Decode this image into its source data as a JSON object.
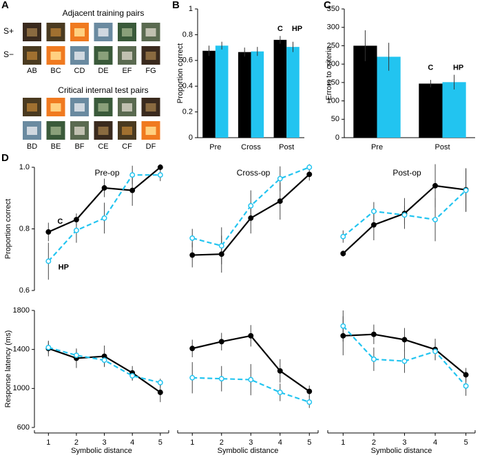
{
  "panel_labels": [
    "A",
    "B",
    "C",
    "D"
  ],
  "panel_a": {
    "training_title": "Adjacent training pairs",
    "row_labels": [
      "S+",
      "S−"
    ],
    "training_pairs": [
      "AB",
      "BC",
      "CD",
      "DE",
      "EF",
      "FG"
    ],
    "test_title": "Critical internal test pairs",
    "test_pairs": [
      "BD",
      "BE",
      "BF",
      "CE",
      "CF",
      "DF"
    ]
  },
  "chart_data": [
    {
      "type": "bar",
      "ylabel": "Proportion correct",
      "categories": [
        "Pre",
        "Cross",
        "Post"
      ],
      "series": [
        {
          "name": "C",
          "color": "#000000",
          "values": [
            0.675,
            0.665,
            0.76
          ],
          "errors": [
            0.04,
            0.035,
            0.03
          ]
        },
        {
          "name": "HP",
          "color": "#22c4f0",
          "values": [
            0.715,
            0.67,
            0.705
          ],
          "errors": [
            0.03,
            0.035,
            0.04
          ]
        }
      ],
      "ylim": [
        0,
        1
      ],
      "yticks": [
        0,
        0.2,
        0.4,
        0.6,
        0.8,
        1
      ]
    },
    {
      "type": "bar",
      "ylabel": "Errors to criteria",
      "categories": [
        "Pre",
        "Post"
      ],
      "series": [
        {
          "name": "C",
          "color": "#000000",
          "values": [
            250,
            147
          ],
          "errors": [
            42,
            10
          ]
        },
        {
          "name": "HP",
          "color": "#22c4f0",
          "values": [
            220,
            151
          ],
          "errors": [
            38,
            20
          ]
        }
      ],
      "ylim": [
        0,
        350
      ],
      "yticks": [
        0,
        50,
        100,
        150,
        200,
        250,
        300,
        350
      ]
    },
    {
      "type": "line",
      "title": "Pre-op",
      "ylabel": "Proportion correct",
      "x": [
        1,
        2,
        3,
        4,
        5
      ],
      "xlim": [
        0.5,
        5.3
      ],
      "series": [
        {
          "name": "C",
          "color": "#000000",
          "dashed": false,
          "marker": "filled",
          "values": [
            0.79,
            0.83,
            0.933,
            0.925,
            1.0
          ],
          "errors": [
            0.03,
            0.02,
            0.03,
            0.05,
            0.01
          ]
        },
        {
          "name": "HP",
          "color": "#22c4f0",
          "dashed": true,
          "marker": "open",
          "values": [
            0.695,
            0.795,
            0.835,
            0.975,
            0.975
          ],
          "errors": [
            0.06,
            0.04,
            0.05,
            0.03,
            0.02
          ]
        }
      ],
      "ylim": [
        0.6,
        1.0
      ],
      "yticks": [
        0.6,
        0.8,
        {
          "value": 1.0,
          "label": "1.0"
        }
      ]
    },
    {
      "type": "line",
      "title": "Cross-op",
      "x": [
        1,
        2,
        3,
        4,
        5
      ],
      "xlim": [
        0.5,
        5.3
      ],
      "series": [
        {
          "color": "#000000",
          "dashed": false,
          "marker": "filled",
          "values": [
            0.715,
            0.718,
            0.835,
            0.89,
            0.977
          ],
          "errors": [
            0.04,
            0.06,
            0.05,
            0.06,
            0.02
          ]
        },
        {
          "color": "#22c4f0",
          "dashed": true,
          "marker": "open",
          "values": [
            0.77,
            0.745,
            0.875,
            0.963,
            1.0
          ],
          "errors": [
            0.03,
            0.06,
            0.05,
            0.04,
            0.01
          ]
        }
      ],
      "ylim": [
        0.6,
        1.0
      ]
    },
    {
      "type": "line",
      "title": "Post-op",
      "x": [
        1,
        2,
        3,
        4,
        5
      ],
      "xlim": [
        0.5,
        5.3
      ],
      "series": [
        {
          "color": "#000000",
          "dashed": false,
          "marker": "filled",
          "values": [
            0.72,
            0.813,
            0.85,
            0.94,
            0.927
          ],
          "errors": [
            0.01,
            0.05,
            0.05,
            0.07,
            0.07
          ]
        },
        {
          "color": "#22c4f0",
          "dashed": true,
          "marker": "open",
          "values": [
            0.775,
            0.857,
            0.845,
            0.83,
            0.925
          ],
          "errors": [
            0.02,
            0.03,
            0.03,
            0.07,
            0.07
          ]
        }
      ],
      "ylim": [
        0.6,
        1.0
      ]
    },
    {
      "type": "line",
      "ylabel": "Response latency (ms)",
      "xlabel": "Symbolic distance",
      "x": [
        1,
        2,
        3,
        4,
        5
      ],
      "xlim": [
        0.5,
        5.3
      ],
      "xticks": [
        1,
        2,
        3,
        4,
        5
      ],
      "series": [
        {
          "color": "#000000",
          "dashed": false,
          "marker": "filled",
          "values": [
            1410,
            1310,
            1330,
            1160,
            960
          ],
          "errors": [
            80,
            100,
            110,
            70,
            100
          ]
        },
        {
          "color": "#22c4f0",
          "dashed": true,
          "marker": "open",
          "values": [
            1420,
            1340,
            1290,
            1130,
            1060
          ],
          "errors": [
            60,
            60,
            60,
            50,
            40
          ]
        }
      ],
      "ylim": [
        600,
        1800
      ],
      "yticks": [
        600,
        1000,
        1400,
        1800
      ]
    },
    {
      "type": "line",
      "xlabel": "Symbolic distance",
      "x": [
        1,
        2,
        3,
        4,
        5
      ],
      "xlim": [
        0.5,
        5.3
      ],
      "xticks": [
        1,
        2,
        3,
        4,
        5
      ],
      "series": [
        {
          "color": "#000000",
          "dashed": false,
          "marker": "filled",
          "values": [
            1410,
            1480,
            1540,
            1180,
            970
          ],
          "errors": [
            90,
            90,
            110,
            120,
            60
          ]
        },
        {
          "color": "#22c4f0",
          "dashed": true,
          "marker": "open",
          "values": [
            1110,
            1100,
            1090,
            960,
            860
          ],
          "errors": [
            160,
            130,
            160,
            90,
            60
          ]
        }
      ],
      "ylim": [
        600,
        1800
      ]
    },
    {
      "type": "line",
      "xlabel": "Symbolic distance",
      "x": [
        1,
        2,
        3,
        4,
        5
      ],
      "xlim": [
        0.5,
        5.3
      ],
      "xticks": [
        1,
        2,
        3,
        4,
        5
      ],
      "series": [
        {
          "color": "#000000",
          "dashed": false,
          "marker": "filled",
          "values": [
            1540,
            1555,
            1500,
            1400,
            1140
          ],
          "errors": [
            200,
            100,
            120,
            110,
            70
          ]
        },
        {
          "color": "#22c4f0",
          "dashed": true,
          "marker": "open",
          "values": [
            1640,
            1300,
            1280,
            1380,
            1025
          ],
          "errors": [
            160,
            120,
            120,
            90,
            100
          ]
        }
      ],
      "ylim": [
        600,
        1800
      ]
    }
  ]
}
